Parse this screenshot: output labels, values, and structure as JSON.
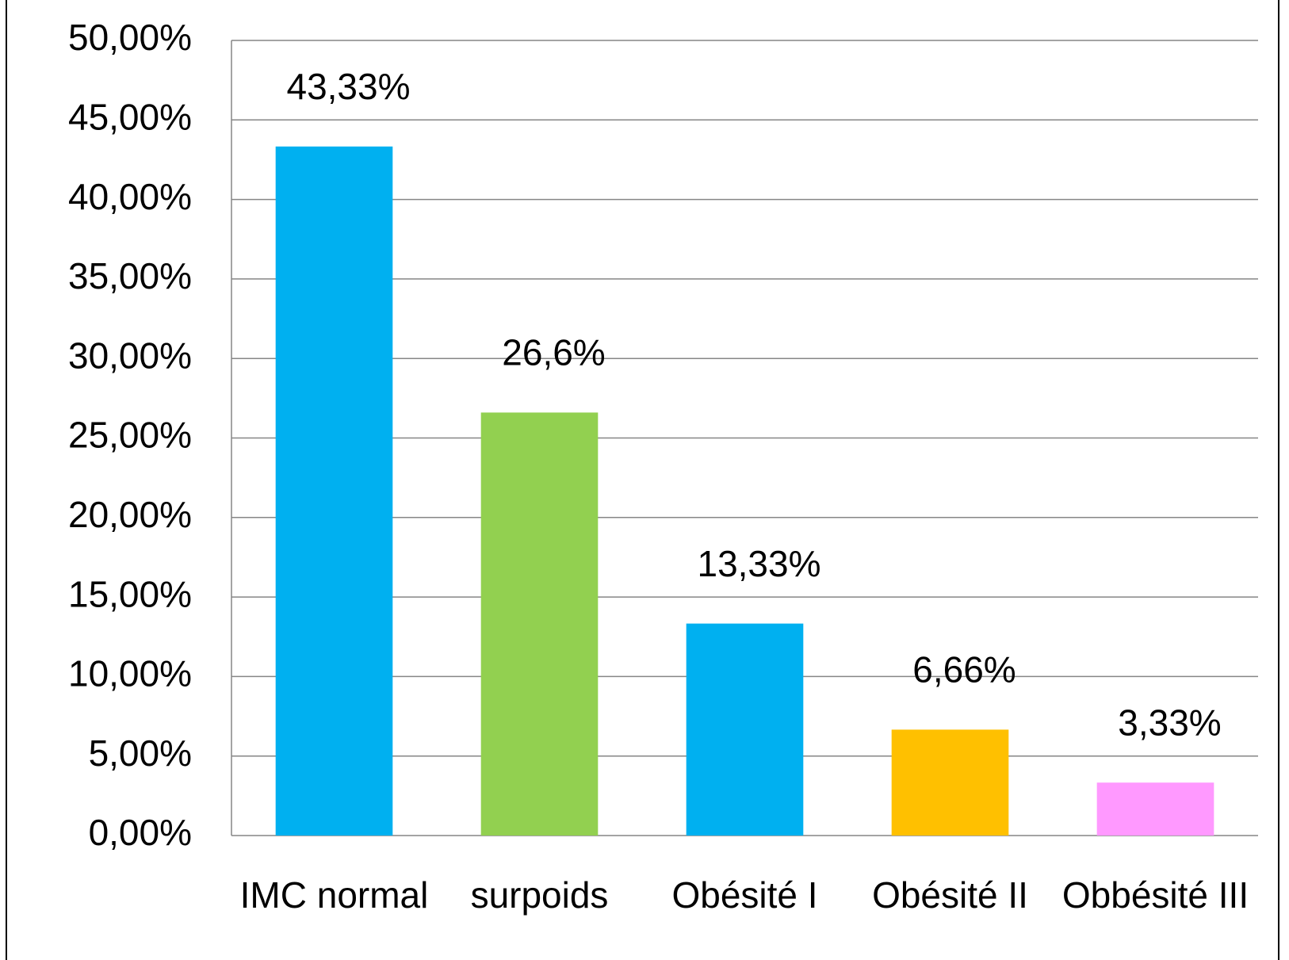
{
  "chart_data": {
    "type": "bar",
    "categories": [
      "IMC normal",
      "surpoids",
      "Obésité I",
      "Obésité II",
      "Obbésité III"
    ],
    "values": [
      43.33,
      26.6,
      13.33,
      6.66,
      3.33
    ],
    "value_labels": [
      "43,33%",
      "26,6%",
      "13,33%",
      "6,66%",
      "3,33%"
    ],
    "colors": [
      "#00b0f0",
      "#92d050",
      "#00b0f0",
      "#ffc000",
      "#ff99ff"
    ],
    "ylim": [
      0,
      50
    ],
    "yticks": [
      {
        "value": 0,
        "label": "0,00%"
      },
      {
        "value": 5,
        "label": "5,00%"
      },
      {
        "value": 10,
        "label": "10,00%"
      },
      {
        "value": 15,
        "label": "15,00%"
      },
      {
        "value": 20,
        "label": "20,00%"
      },
      {
        "value": 25,
        "label": "25,00%"
      },
      {
        "value": 30,
        "label": "30,00%"
      },
      {
        "value": 35,
        "label": "35,00%"
      },
      {
        "value": 40,
        "label": "40,00%"
      },
      {
        "value": 45,
        "label": "45,00%"
      },
      {
        "value": 50,
        "label": "50,00%"
      }
    ],
    "grid": true
  }
}
